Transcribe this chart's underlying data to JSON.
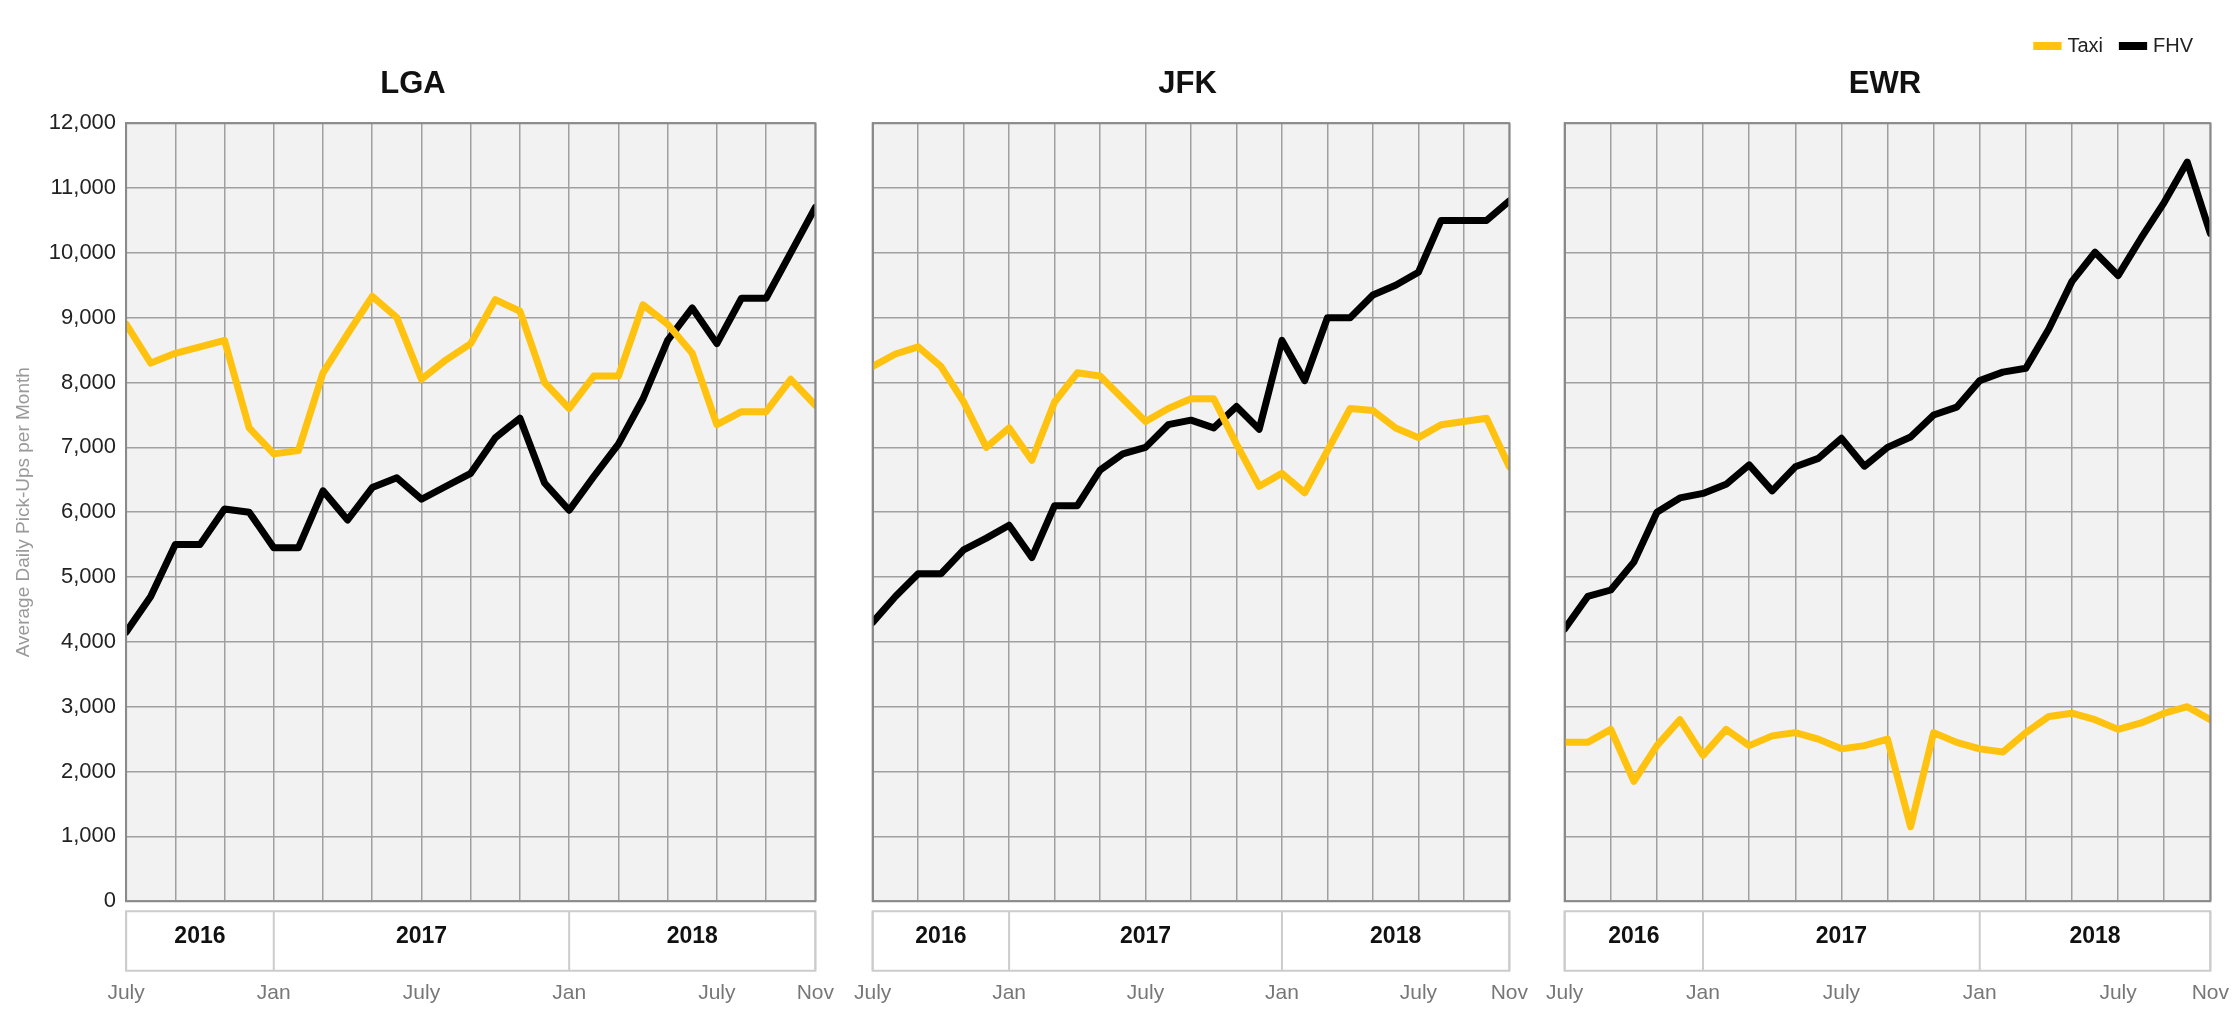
{
  "chart_data": [
    {
      "type": "line",
      "title": "LGA",
      "ylabel": "Average Daily Pick-Ups per Month",
      "grid": true,
      "x": [
        "2016-07",
        "2016-08",
        "2016-09",
        "2016-10",
        "2016-11",
        "2016-12",
        "2017-01",
        "2017-02",
        "2017-03",
        "2017-04",
        "2017-05",
        "2017-06",
        "2017-07",
        "2017-08",
        "2017-09",
        "2017-10",
        "2017-11",
        "2017-12",
        "2018-01",
        "2018-02",
        "2018-03",
        "2018-04",
        "2018-05",
        "2018-06",
        "2018-07",
        "2018-08",
        "2018-09",
        "2018-10",
        "2018-11"
      ],
      "series": [
        {
          "color": "#ffc20e",
          "values": [
            8900,
            8300,
            8450,
            8550,
            8650,
            7300,
            6900,
            6950,
            8150,
            8750,
            9330,
            9000,
            8050,
            8350,
            8600,
            9280,
            9100,
            8000,
            7600,
            8100,
            8100,
            9200,
            8900,
            8450,
            7350,
            7550,
            7550,
            8050,
            7650
          ]
        },
        {
          "color": "#000000",
          "values": [
            4150,
            4700,
            5500,
            5500,
            6050,
            6000,
            5450,
            5450,
            6330,
            5880,
            6380,
            6530,
            6200,
            6400,
            6600,
            7150,
            7450,
            6450,
            6030,
            6550,
            7050,
            7750,
            8650,
            9150,
            8600,
            9300,
            9300,
            10000,
            10700
          ]
        }
      ],
      "xlim": [
        "2016-07",
        "2018-11"
      ],
      "xticks": [
        {
          "value": "2016-07",
          "label": "July"
        },
        {
          "value": "2016-09",
          "label": null
        },
        {
          "value": "2016-11",
          "label": null
        },
        {
          "value": "2017-01",
          "label": "Jan"
        },
        {
          "value": "2017-03",
          "label": null
        },
        {
          "value": "2017-05",
          "label": null
        },
        {
          "value": "2017-07",
          "label": "July"
        },
        {
          "value": "2017-09",
          "label": null
        },
        {
          "value": "2017-11",
          "label": null
        },
        {
          "value": "2018-01",
          "label": "Jan"
        },
        {
          "value": "2018-03",
          "label": null
        },
        {
          "value": "2018-05",
          "label": null
        },
        {
          "value": "2018-07",
          "label": "July"
        },
        {
          "value": "2018-09",
          "label": null
        },
        {
          "value": "2018-11",
          "label": "Nov"
        }
      ],
      "x2lim": [
        "2016-07",
        "2018-11"
      ],
      "x2ticks": [
        {
          "value": "2016-07",
          "label": null
        },
        {
          "value": "2016-10",
          "label": "2016"
        },
        {
          "value": "2017-01",
          "label": null
        },
        {
          "value": "2017-07",
          "label": "2017"
        },
        {
          "value": "2018-01",
          "label": null
        },
        {
          "value": "2018-06",
          "label": "2018"
        },
        {
          "value": "2018-11",
          "label": null
        }
      ],
      "ylim": [
        0,
        12000
      ],
      "yticks": [
        {
          "value": 0,
          "label": "0"
        },
        {
          "value": 1000,
          "label": "1,000"
        },
        {
          "value": 2000,
          "label": "2,000"
        },
        {
          "value": 3000,
          "label": "3,000"
        },
        {
          "value": 4000,
          "label": "4,000"
        },
        {
          "value": 5000,
          "label": "5,000"
        },
        {
          "value": 6000,
          "label": "6,000"
        },
        {
          "value": 7000,
          "label": "7,000"
        },
        {
          "value": 8000,
          "label": "8,000"
        },
        {
          "value": 9000,
          "label": "9,000"
        },
        {
          "value": 10000,
          "label": "10,000"
        },
        {
          "value": 11000,
          "label": "11,000"
        },
        {
          "value": 12000,
          "label": "12,000"
        }
      ]
    },
    {
      "type": "line",
      "title": "JFK",
      "grid": true,
      "tick_labels": "x",
      "x": [
        "2016-07",
        "2016-08",
        "2016-09",
        "2016-10",
        "2016-11",
        "2016-12",
        "2017-01",
        "2017-02",
        "2017-03",
        "2017-04",
        "2017-05",
        "2017-06",
        "2017-07",
        "2017-08",
        "2017-09",
        "2017-10",
        "2017-11",
        "2017-12",
        "2018-01",
        "2018-02",
        "2018-03",
        "2018-04",
        "2018-05",
        "2018-06",
        "2018-07",
        "2018-08",
        "2018-09",
        "2018-10",
        "2018-11"
      ],
      "series": [
        {
          "color": "#ffc20e",
          "values": [
            8250,
            8440,
            8550,
            8250,
            7700,
            7000,
            7300,
            6800,
            7700,
            8150,
            8100,
            7750,
            7400,
            7600,
            7750,
            7750,
            7050,
            6400,
            6600,
            6300,
            6950,
            7600,
            7570,
            7300,
            7150,
            7350,
            7400,
            7450,
            6700
          ]
        },
        {
          "color": "#000000",
          "values": [
            4300,
            4700,
            5050,
            5050,
            5420,
            5600,
            5800,
            5300,
            6100,
            6100,
            6650,
            6900,
            7000,
            7350,
            7420,
            7300,
            7630,
            7280,
            8650,
            8030,
            9000,
            9000,
            9350,
            9500,
            9700,
            10500,
            10500,
            10500,
            10800
          ]
        }
      ],
      "xlim": [
        "2016-07",
        "2018-11"
      ],
      "xticks": [
        {
          "value": "2016-07",
          "label": "July"
        },
        {
          "value": "2016-09",
          "label": null
        },
        {
          "value": "2016-11",
          "label": null
        },
        {
          "value": "2017-01",
          "label": "Jan"
        },
        {
          "value": "2017-03",
          "label": null
        },
        {
          "value": "2017-05",
          "label": null
        },
        {
          "value": "2017-07",
          "label": "July"
        },
        {
          "value": "2017-09",
          "label": null
        },
        {
          "value": "2017-11",
          "label": null
        },
        {
          "value": "2018-01",
          "label": "Jan"
        },
        {
          "value": "2018-03",
          "label": null
        },
        {
          "value": "2018-05",
          "label": null
        },
        {
          "value": "2018-07",
          "label": "July"
        },
        {
          "value": "2018-09",
          "label": null
        },
        {
          "value": "2018-11",
          "label": "Nov"
        }
      ],
      "x2lim": [
        "2016-07",
        "2018-11"
      ],
      "x2ticks": [
        {
          "value": "2016-07",
          "label": null
        },
        {
          "value": "2016-10",
          "label": "2016"
        },
        {
          "value": "2017-01",
          "label": null
        },
        {
          "value": "2017-07",
          "label": "2017"
        },
        {
          "value": "2018-01",
          "label": null
        },
        {
          "value": "2018-06",
          "label": "2018"
        },
        {
          "value": "2018-11",
          "label": null
        }
      ],
      "ylim": [
        0,
        12000
      ],
      "yticks": [
        0,
        1000,
        2000,
        3000,
        4000,
        5000,
        6000,
        7000,
        8000,
        9000,
        10000,
        11000,
        12000
      ]
    },
    {
      "type": "line",
      "title": "EWR",
      "grid": true,
      "tick_labels": "x",
      "legend": "top right",
      "x": [
        "2016-07",
        "2016-08",
        "2016-09",
        "2016-10",
        "2016-11",
        "2016-12",
        "2017-01",
        "2017-02",
        "2017-03",
        "2017-04",
        "2017-05",
        "2017-06",
        "2017-07",
        "2017-08",
        "2017-09",
        "2017-10",
        "2017-11",
        "2017-12",
        "2018-01",
        "2018-02",
        "2018-03",
        "2018-04",
        "2018-05",
        "2018-06",
        "2018-07",
        "2018-08",
        "2018-09",
        "2018-10",
        "2018-11"
      ],
      "series": [
        {
          "name": "Taxi",
          "color": "#ffc20e",
          "values": [
            2450,
            2450,
            2650,
            1850,
            2400,
            2800,
            2250,
            2650,
            2400,
            2550,
            2600,
            2500,
            2350,
            2400,
            2500,
            1150,
            2600,
            2450,
            2350,
            2300,
            2600,
            2850,
            2900,
            2800,
            2650,
            2750,
            2900,
            3000,
            2800
          ]
        },
        {
          "name": "FHV",
          "color": "#000000",
          "values": [
            4200,
            4700,
            4800,
            5230,
            6000,
            6220,
            6290,
            6430,
            6730,
            6330,
            6700,
            6830,
            7140,
            6710,
            7000,
            7160,
            7500,
            7620,
            8030,
            8160,
            8220,
            8830,
            9560,
            10010,
            9650,
            10230,
            10780,
            11400,
            10300
          ]
        }
      ],
      "xlim": [
        "2016-07",
        "2018-11"
      ],
      "xticks": [
        {
          "value": "2016-07",
          "label": "July"
        },
        {
          "value": "2016-09",
          "label": null
        },
        {
          "value": "2016-11",
          "label": null
        },
        {
          "value": "2017-01",
          "label": "Jan"
        },
        {
          "value": "2017-03",
          "label": null
        },
        {
          "value": "2017-05",
          "label": null
        },
        {
          "value": "2017-07",
          "label": "July"
        },
        {
          "value": "2017-09",
          "label": null
        },
        {
          "value": "2017-11",
          "label": null
        },
        {
          "value": "2018-01",
          "label": "Jan"
        },
        {
          "value": "2018-03",
          "label": null
        },
        {
          "value": "2018-05",
          "label": null
        },
        {
          "value": "2018-07",
          "label": "July"
        },
        {
          "value": "2018-09",
          "label": null
        },
        {
          "value": "2018-11",
          "label": "Nov"
        }
      ],
      "x2lim": [
        "2016-07",
        "2018-11"
      ],
      "x2ticks": [
        {
          "value": "2016-07",
          "label": null
        },
        {
          "value": "2016-10",
          "label": "2016"
        },
        {
          "value": "2017-01",
          "label": null
        },
        {
          "value": "2017-07",
          "label": "2017"
        },
        {
          "value": "2018-01",
          "label": null
        },
        {
          "value": "2018-06",
          "label": "2018"
        },
        {
          "value": "2018-11",
          "label": null
        }
      ],
      "ylim": [
        0,
        12000
      ],
      "yticks": [
        0,
        1000,
        2000,
        3000,
        4000,
        5000,
        6000,
        7000,
        8000,
        9000,
        10000,
        11000,
        12000
      ]
    }
  ]
}
